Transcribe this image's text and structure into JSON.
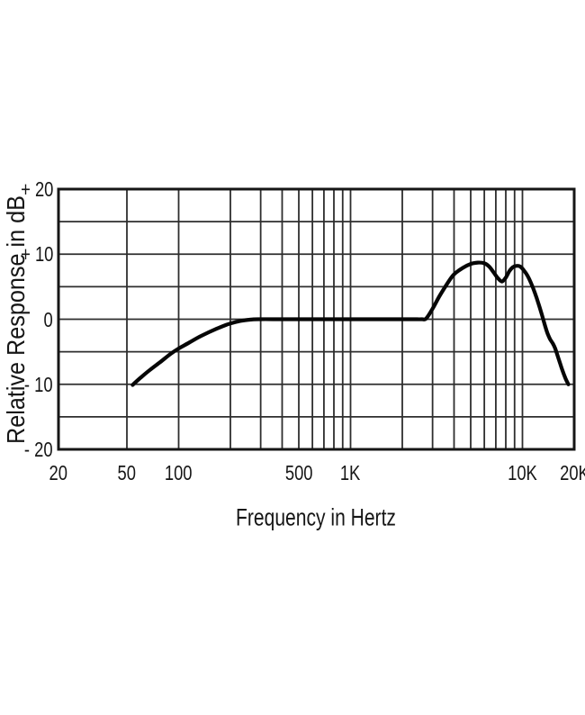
{
  "chart_data": {
    "type": "line",
    "title": "",
    "xlabel": "Frequency in Hertz",
    "ylabel": "Relative Response in dB",
    "x_scale": "log",
    "xlim": [
      20,
      20000
    ],
    "ylim": [
      -20,
      20
    ],
    "grid": true,
    "legend": false,
    "x_gridlines": [
      50,
      100,
      200,
      300,
      400,
      500,
      600,
      700,
      800,
      900,
      1000,
      2000,
      3000,
      4000,
      5000,
      6000,
      7000,
      8000,
      9000,
      10000
    ],
    "y_gridlines": [
      -15,
      -10,
      -5,
      0,
      5,
      10,
      15
    ],
    "x_ticks": [
      {
        "value": 20,
        "label": "20"
      },
      {
        "value": 50,
        "label": "50"
      },
      {
        "value": 100,
        "label": "100"
      },
      {
        "value": 500,
        "label": "500"
      },
      {
        "value": 1000,
        "label": "1K"
      },
      {
        "value": 10000,
        "label": "10K"
      },
      {
        "value": 20000,
        "label": "20K"
      }
    ],
    "y_ticks": [
      {
        "value": 20,
        "label": "+ 20"
      },
      {
        "value": 10,
        "label": "+ 10"
      },
      {
        "value": 0,
        "label": "0"
      },
      {
        "value": -10,
        "label": "- 10"
      },
      {
        "value": -20,
        "label": "- 20"
      }
    ],
    "series": [
      {
        "name": "relative-response",
        "points": [
          [
            54,
            -10.1
          ],
          [
            60,
            -9.0
          ],
          [
            68,
            -7.8
          ],
          [
            78,
            -6.6
          ],
          [
            90,
            -5.3
          ],
          [
            100,
            -4.5
          ],
          [
            115,
            -3.6
          ],
          [
            130,
            -2.8
          ],
          [
            150,
            -2.0
          ],
          [
            170,
            -1.35
          ],
          [
            190,
            -0.85
          ],
          [
            210,
            -0.5
          ],
          [
            230,
            -0.25
          ],
          [
            255,
            -0.08
          ],
          [
            290,
            0
          ],
          [
            400,
            0
          ],
          [
            600,
            0
          ],
          [
            900,
            0
          ],
          [
            1300,
            0
          ],
          [
            1800,
            0
          ],
          [
            2300,
            0
          ],
          [
            2600,
            0
          ],
          [
            2750,
            0.1
          ],
          [
            3000,
            1.6
          ],
          [
            3300,
            3.6
          ],
          [
            3700,
            5.7
          ],
          [
            4000,
            6.9
          ],
          [
            4500,
            7.9
          ],
          [
            5000,
            8.5
          ],
          [
            5500,
            8.7
          ],
          [
            6000,
            8.6
          ],
          [
            6400,
            8.1
          ],
          [
            6800,
            7.2
          ],
          [
            7200,
            6.3
          ],
          [
            7600,
            5.8
          ],
          [
            8000,
            6.4
          ],
          [
            8400,
            7.4
          ],
          [
            8800,
            8.0
          ],
          [
            9200,
            8.2
          ],
          [
            9700,
            8.1
          ],
          [
            10200,
            7.5
          ],
          [
            10700,
            6.7
          ],
          [
            11200,
            5.6
          ],
          [
            11800,
            4.1
          ],
          [
            12400,
            2.4
          ],
          [
            13000,
            0.6
          ],
          [
            13500,
            -0.9
          ],
          [
            14000,
            -2.2
          ],
          [
            14500,
            -3.1
          ],
          [
            15000,
            -3.7
          ],
          [
            15500,
            -4.5
          ],
          [
            16200,
            -6.0
          ],
          [
            17000,
            -7.7
          ],
          [
            17800,
            -9.1
          ],
          [
            18500,
            -10.0
          ]
        ]
      }
    ],
    "colors": {
      "background": "#ffffff",
      "grid": "#2e2e2e",
      "frame": "#161616",
      "curve": "#060606",
      "text": "#161616"
    }
  }
}
